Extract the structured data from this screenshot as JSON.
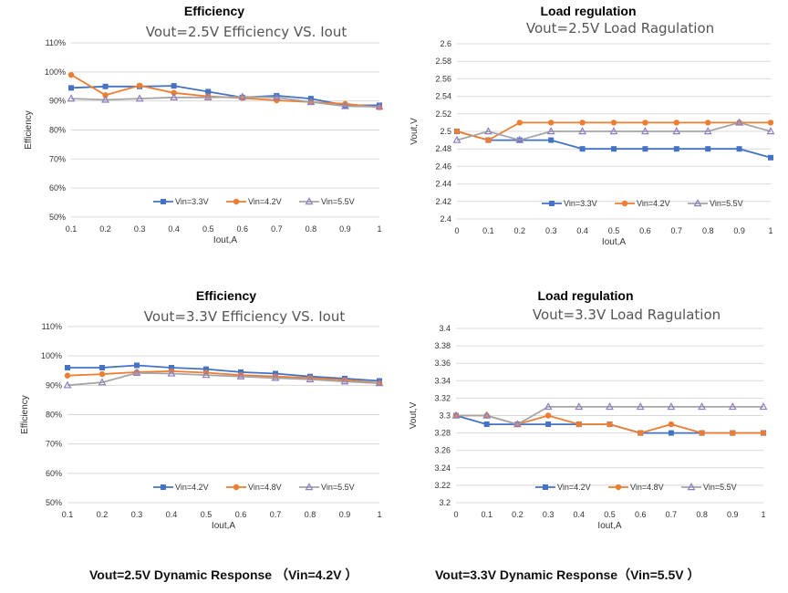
{
  "headings": {
    "tl": "Efficiency",
    "tr": "Load regulation",
    "bl": "Efficiency",
    "br": "Load regulation"
  },
  "captions": {
    "left": "Vout=2.5V Dynamic Response （Vin=4.2V ）",
    "right": "Vout=3.3V Dynamic Response（Vin=5.5V ）"
  },
  "colors": {
    "s1": "#4472C4",
    "s2": "#ED7D31",
    "s3": "#A5A5A5",
    "s3marker": "#8E7CC3",
    "grid": "#D9D9D9"
  },
  "chart_data": [
    {
      "id": "tl",
      "type": "line",
      "title": "Vout=2.5V     Efficiency  VS.  Iout",
      "xlabel": "Iout,A",
      "ylabel": "Efficiency",
      "x": [
        0.1,
        0.2,
        0.3,
        0.4,
        0.5,
        0.6,
        0.7,
        0.8,
        0.9,
        1
      ],
      "xticks": [
        "0.1",
        "0.2",
        "0.3",
        "0.4",
        "0.5",
        "0.6",
        "0.7",
        "0.8",
        "0.9",
        "1"
      ],
      "ylim": [
        50,
        110
      ],
      "yticks": [
        "50%",
        "60%",
        "70%",
        "80%",
        "90%",
        "100%",
        "110%"
      ],
      "grid": true,
      "legend": "bottom-right",
      "series": [
        {
          "name": "Vin=3.3V",
          "values": [
            94.5,
            95,
            95,
            95.2,
            93.2,
            91.2,
            91.8,
            90.8,
            88.5,
            88.5
          ]
        },
        {
          "name": "Vin=4.2V",
          "values": [
            99,
            92,
            95.3,
            92.8,
            91.6,
            91,
            90.2,
            89.6,
            89,
            87.8
          ]
        },
        {
          "name": "Vin=5.5V",
          "values": [
            90.8,
            90.4,
            90.8,
            91.2,
            91.2,
            91.4,
            91.2,
            89.6,
            88.2,
            88
          ]
        }
      ]
    },
    {
      "id": "tr",
      "type": "line",
      "title": "Vout=2.5V    Load Ragulation",
      "xlabel": "Iout,A",
      "ylabel": "Vout,V",
      "x": [
        0,
        0.1,
        0.2,
        0.3,
        0.4,
        0.5,
        0.6,
        0.7,
        0.8,
        0.9,
        1
      ],
      "xticks": [
        "0",
        "0.1",
        "0.2",
        "0.3",
        "0.4",
        "0.5",
        "0.6",
        "0.7",
        "0.8",
        "0.9",
        "1"
      ],
      "ylim": [
        2.4,
        2.6
      ],
      "yticks": [
        "2.4",
        "2.42",
        "2.44",
        "2.46",
        "2.48",
        "2.5",
        "2.52",
        "2.54",
        "2.56",
        "2.58",
        "2.6"
      ],
      "grid": true,
      "legend": "bottom-right",
      "series": [
        {
          "name": "Vin=3.3V",
          "values": [
            2.5,
            2.49,
            2.49,
            2.49,
            2.48,
            2.48,
            2.48,
            2.48,
            2.48,
            2.48,
            2.47
          ]
        },
        {
          "name": "Vin=4.2V",
          "values": [
            2.5,
            2.49,
            2.51,
            2.51,
            2.51,
            2.51,
            2.51,
            2.51,
            2.51,
            2.51,
            2.51
          ]
        },
        {
          "name": "Vin=5.5V",
          "values": [
            2.49,
            2.5,
            2.49,
            2.5,
            2.5,
            2.5,
            2.5,
            2.5,
            2.5,
            2.51,
            2.5
          ]
        }
      ]
    },
    {
      "id": "bl",
      "type": "line",
      "title": "Vout=3.3V    Efficiency  VS.  Iout",
      "xlabel": "Iout,A",
      "ylabel": "Efficiency",
      "x": [
        0.1,
        0.2,
        0.3,
        0.4,
        0.5,
        0.6,
        0.7,
        0.8,
        0.9,
        1
      ],
      "xticks": [
        "0.1",
        "0.2",
        "0.3",
        "0.4",
        "0.5",
        "0.6",
        "0.7",
        "0.8",
        "0.9",
        "1"
      ],
      "ylim": [
        50,
        110
      ],
      "yticks": [
        "50%",
        "60%",
        "70%",
        "80%",
        "90%",
        "100%",
        "110%"
      ],
      "grid": true,
      "legend": "bottom-right",
      "series": [
        {
          "name": "Vin=4.2V",
          "values": [
            96,
            96,
            96.8,
            96,
            95.5,
            94.5,
            94,
            93,
            92.3,
            91.5
          ]
        },
        {
          "name": "Vin=4.8V",
          "values": [
            93.3,
            93.8,
            94.5,
            94.8,
            94.3,
            93.5,
            93,
            92.5,
            91.8,
            90.8
          ]
        },
        {
          "name": "Vin=5.5V",
          "values": [
            90,
            91,
            94.2,
            94,
            93.5,
            93,
            92.5,
            92,
            91.3,
            90.7
          ]
        }
      ]
    },
    {
      "id": "br",
      "type": "line",
      "title": "Vout=3.3V    Load Ragulation",
      "xlabel": "Iout,A",
      "ylabel": "Vout,V",
      "x": [
        0,
        0.1,
        0.2,
        0.3,
        0.4,
        0.5,
        0.6,
        0.7,
        0.8,
        0.9,
        1
      ],
      "xticks": [
        "0",
        "0.1",
        "0.2",
        "0.3",
        "0.4",
        "0.5",
        "0.6",
        "0.7",
        "0.8",
        "0.9",
        "1"
      ],
      "ylim": [
        3.2,
        3.4
      ],
      "yticks": [
        "3.2",
        "3.22",
        "3.24",
        "3.26",
        "3.28",
        "3.3",
        "3.32",
        "3.34",
        "3.36",
        "3.38",
        "3.4"
      ],
      "grid": true,
      "legend": "bottom-right",
      "series": [
        {
          "name": "Vin=4.2V",
          "values": [
            3.3,
            3.29,
            3.29,
            3.29,
            3.29,
            3.29,
            3.28,
            3.28,
            3.28,
            3.28,
            3.28
          ]
        },
        {
          "name": "Vin=4.8V",
          "values": [
            3.3,
            3.3,
            3.29,
            3.3,
            3.29,
            3.29,
            3.28,
            3.29,
            3.28,
            3.28,
            3.28
          ]
        },
        {
          "name": "Vin=5.5V",
          "values": [
            3.3,
            3.3,
            3.29,
            3.31,
            3.31,
            3.31,
            3.31,
            3.31,
            3.31,
            3.31,
            3.31
          ]
        }
      ]
    }
  ]
}
